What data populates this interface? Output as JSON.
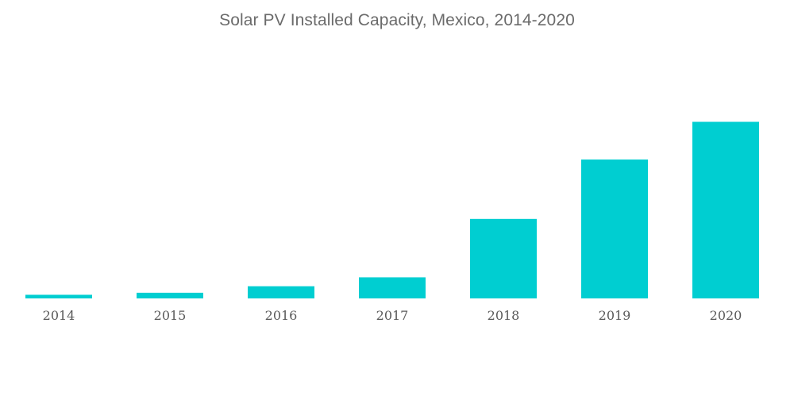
{
  "chart_data": {
    "type": "bar",
    "title": "Solar PV Installed Capacity, Mexico, 2014-2020",
    "xlabel": "",
    "ylabel": "",
    "categories": [
      "2014",
      "2015",
      "2016",
      "2017",
      "2018",
      "2019",
      "2020"
    ],
    "values": [
      116,
      181,
      389,
      674,
      2541,
      4440,
      5644
    ],
    "ylim": [
      0,
      5644
    ],
    "grid": false,
    "legend": "none",
    "y_axis_visible": false,
    "bar_color": "#00ced1"
  }
}
